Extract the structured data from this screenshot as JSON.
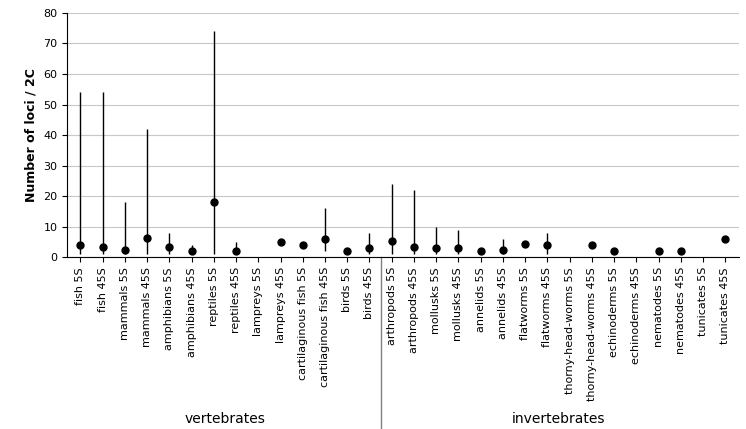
{
  "chart_data": {
    "type": "dot_range",
    "ylabel": "Number of loci / 2C",
    "categories": [
      "fish 5S",
      "fish 45S",
      "mammals 5S",
      "mammals 45S",
      "amphibians 5S",
      "amphibians 45S",
      "reptiles 5S",
      "reptiles 45S",
      "lampreys 5S",
      "lampreys 45S",
      "cartilaginous fish 5S",
      "cartilaginous fish 45S",
      "birds 5S",
      "birds 45S",
      "arthropods 5S",
      "arthropods 45S",
      "mollusks 5S",
      "mollusks 45S",
      "annelids 5S",
      "annelids 45S",
      "flatworms 5S",
      "flatworms 45S",
      "thorny-head-worms 5S",
      "thorny-head-worms 45S",
      "echinoderms 5S",
      "echinoderms 45S",
      "nematodes 5S",
      "nematodes 45S",
      "tunicates 5S",
      "tunicates 45S"
    ],
    "values": [
      4,
      3.5,
      2.5,
      6.5,
      3.5,
      2,
      18,
      2,
      null,
      5,
      4,
      6,
      2,
      3,
      5.5,
      3.5,
      3,
      3,
      2,
      2.5,
      4.5,
      4,
      null,
      4,
      2,
      null,
      2,
      2,
      null,
      6
    ],
    "range_low": [
      1,
      1,
      1,
      1,
      1,
      1,
      1,
      1,
      null,
      null,
      null,
      2,
      null,
      1,
      1,
      1,
      1,
      1,
      null,
      1,
      null,
      1,
      null,
      null,
      null,
      null,
      null,
      null,
      null,
      null
    ],
    "range_high": [
      54,
      54,
      18,
      42,
      8,
      4,
      74,
      5,
      null,
      null,
      null,
      16,
      null,
      8,
      24,
      22,
      10,
      9,
      null,
      6,
      null,
      8,
      null,
      null,
      null,
      null,
      null,
      null,
      null,
      null
    ],
    "groups": [
      {
        "label": "vertebrates",
        "from": "fish 5S",
        "to": "birds 45S"
      },
      {
        "label": "invertebrates",
        "from": "arthropods 5S",
        "to": "tunicates 45S"
      }
    ],
    "color": "#000000",
    "ylim": [
      0,
      80
    ],
    "yticks": [
      0,
      10,
      20,
      30,
      40,
      50,
      60,
      70,
      80
    ],
    "grid": true
  }
}
